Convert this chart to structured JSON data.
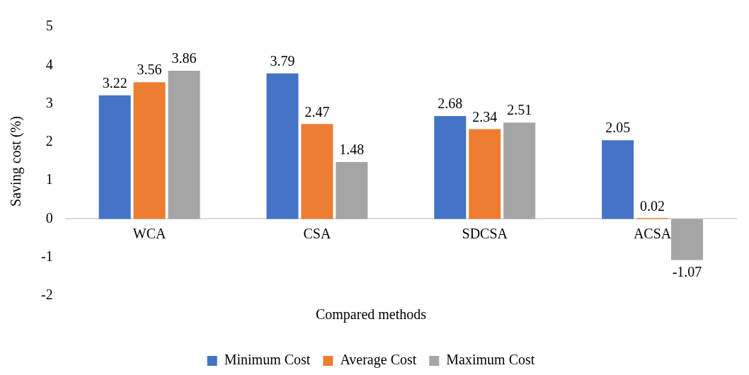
{
  "chart_data": {
    "type": "bar",
    "xlabel": "Compared methods",
    "ylabel": "Saving cost (%)",
    "categories": [
      "WCA",
      "CSA",
      "SDCSA",
      "ACSA"
    ],
    "series": [
      {
        "name": "Minimum Cost",
        "color": "#4472c4",
        "values": [
          3.22,
          3.79,
          2.68,
          2.05
        ]
      },
      {
        "name": "Average Cost",
        "color": "#ed7d31",
        "values": [
          3.56,
          2.47,
          2.34,
          0.02
        ]
      },
      {
        "name": "Maximum Cost",
        "color": "#a5a5a5",
        "values": [
          3.86,
          1.48,
          2.51,
          -1.07
        ]
      }
    ],
    "ylim": [
      -2,
      5
    ],
    "yticks": [
      -2,
      -1,
      0,
      1,
      2,
      3,
      4,
      5
    ],
    "grid": false,
    "legend": "bottom",
    "data_labels": true
  }
}
